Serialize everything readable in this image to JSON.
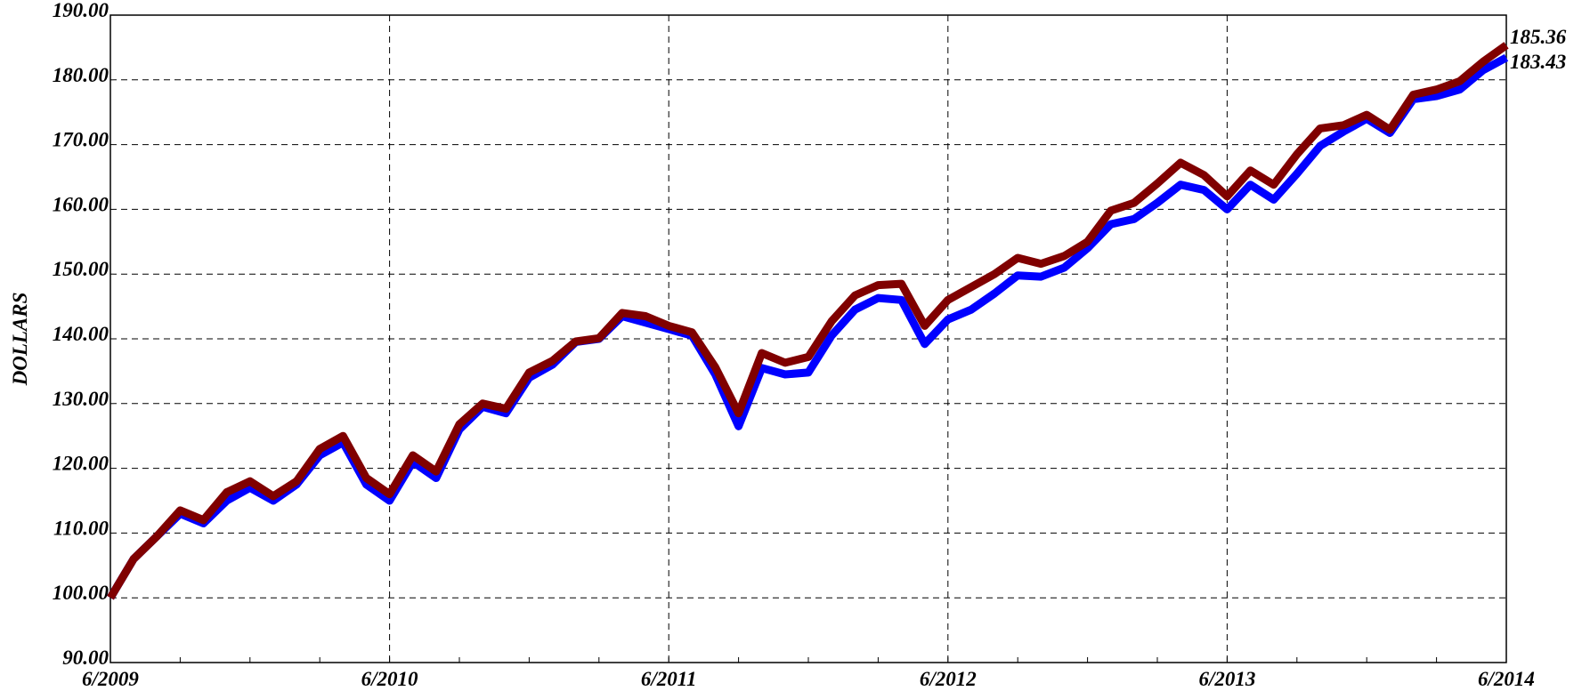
{
  "chart_data": {
    "type": "line",
    "ylabel": "DOLLARS",
    "categories": [
      "6/2009",
      null,
      null,
      null,
      null,
      null,
      null,
      null,
      null,
      null,
      null,
      null,
      "6/2010",
      null,
      null,
      null,
      null,
      null,
      null,
      null,
      null,
      null,
      null,
      null,
      "6/2011",
      null,
      null,
      null,
      null,
      null,
      null,
      null,
      null,
      null,
      null,
      null,
      "6/2012",
      null,
      null,
      null,
      null,
      null,
      null,
      null,
      null,
      null,
      null,
      null,
      "6/2013",
      null,
      null,
      null,
      null,
      null,
      null,
      null,
      null,
      null,
      null,
      null,
      "6/2014"
    ],
    "series": [
      {
        "color": "#0000ff",
        "values": [
          100,
          106,
          109.5,
          113,
          111.5,
          115,
          117,
          115,
          117.5,
          122,
          124,
          117.5,
          115,
          121,
          118.5,
          126,
          129.5,
          128.5,
          134,
          136,
          139.5,
          140,
          143.5,
          142.5,
          141.5,
          140.5,
          134.5,
          126.5,
          135.5,
          134.5,
          134.8,
          140.5,
          144.5,
          146.3,
          146,
          139.2,
          143,
          144.5,
          147,
          149.8,
          149.6,
          151,
          154,
          157.7,
          158.5,
          161,
          163.8,
          163,
          160,
          163.8,
          161.5,
          165.5,
          169.8,
          172,
          174,
          171.8,
          177,
          177.5,
          178.5,
          181.5,
          183.43
        ]
      },
      {
        "color": "#800000",
        "values": [
          100,
          106,
          109.5,
          113.5,
          112,
          116.3,
          118,
          115.7,
          118,
          123,
          125,
          118.5,
          116,
          122,
          119.5,
          126.8,
          130,
          129.2,
          134.8,
          136.6,
          139.6,
          140.1,
          144,
          143.5,
          142,
          141,
          135.6,
          128.5,
          137.8,
          136.3,
          137.2,
          142.7,
          146.7,
          148.3,
          148.5,
          142,
          146,
          148,
          150,
          152.5,
          151.6,
          152.8,
          155,
          159.8,
          161,
          164,
          167.2,
          165.3,
          162,
          166,
          163.8,
          168.5,
          172.5,
          173,
          174.6,
          172.3,
          177.7,
          178.5,
          179.8,
          182.8,
          185.36
        ]
      }
    ],
    "ylim": [
      90,
      190
    ],
    "yticks": [
      {
        "value": 90,
        "label": "90.00"
      },
      {
        "value": 100,
        "label": "100.00"
      },
      {
        "value": 110,
        "label": "110.00"
      },
      {
        "value": 120,
        "label": "120.00"
      },
      {
        "value": 130,
        "label": "130.00"
      },
      {
        "value": 140,
        "label": "140.00"
      },
      {
        "value": 150,
        "label": "150.00"
      },
      {
        "value": 160,
        "label": "160.00"
      },
      {
        "value": 170,
        "label": "170.00"
      },
      {
        "value": 180,
        "label": "180.00"
      },
      {
        "value": 190,
        "label": "190.00"
      }
    ],
    "grid": true
  }
}
